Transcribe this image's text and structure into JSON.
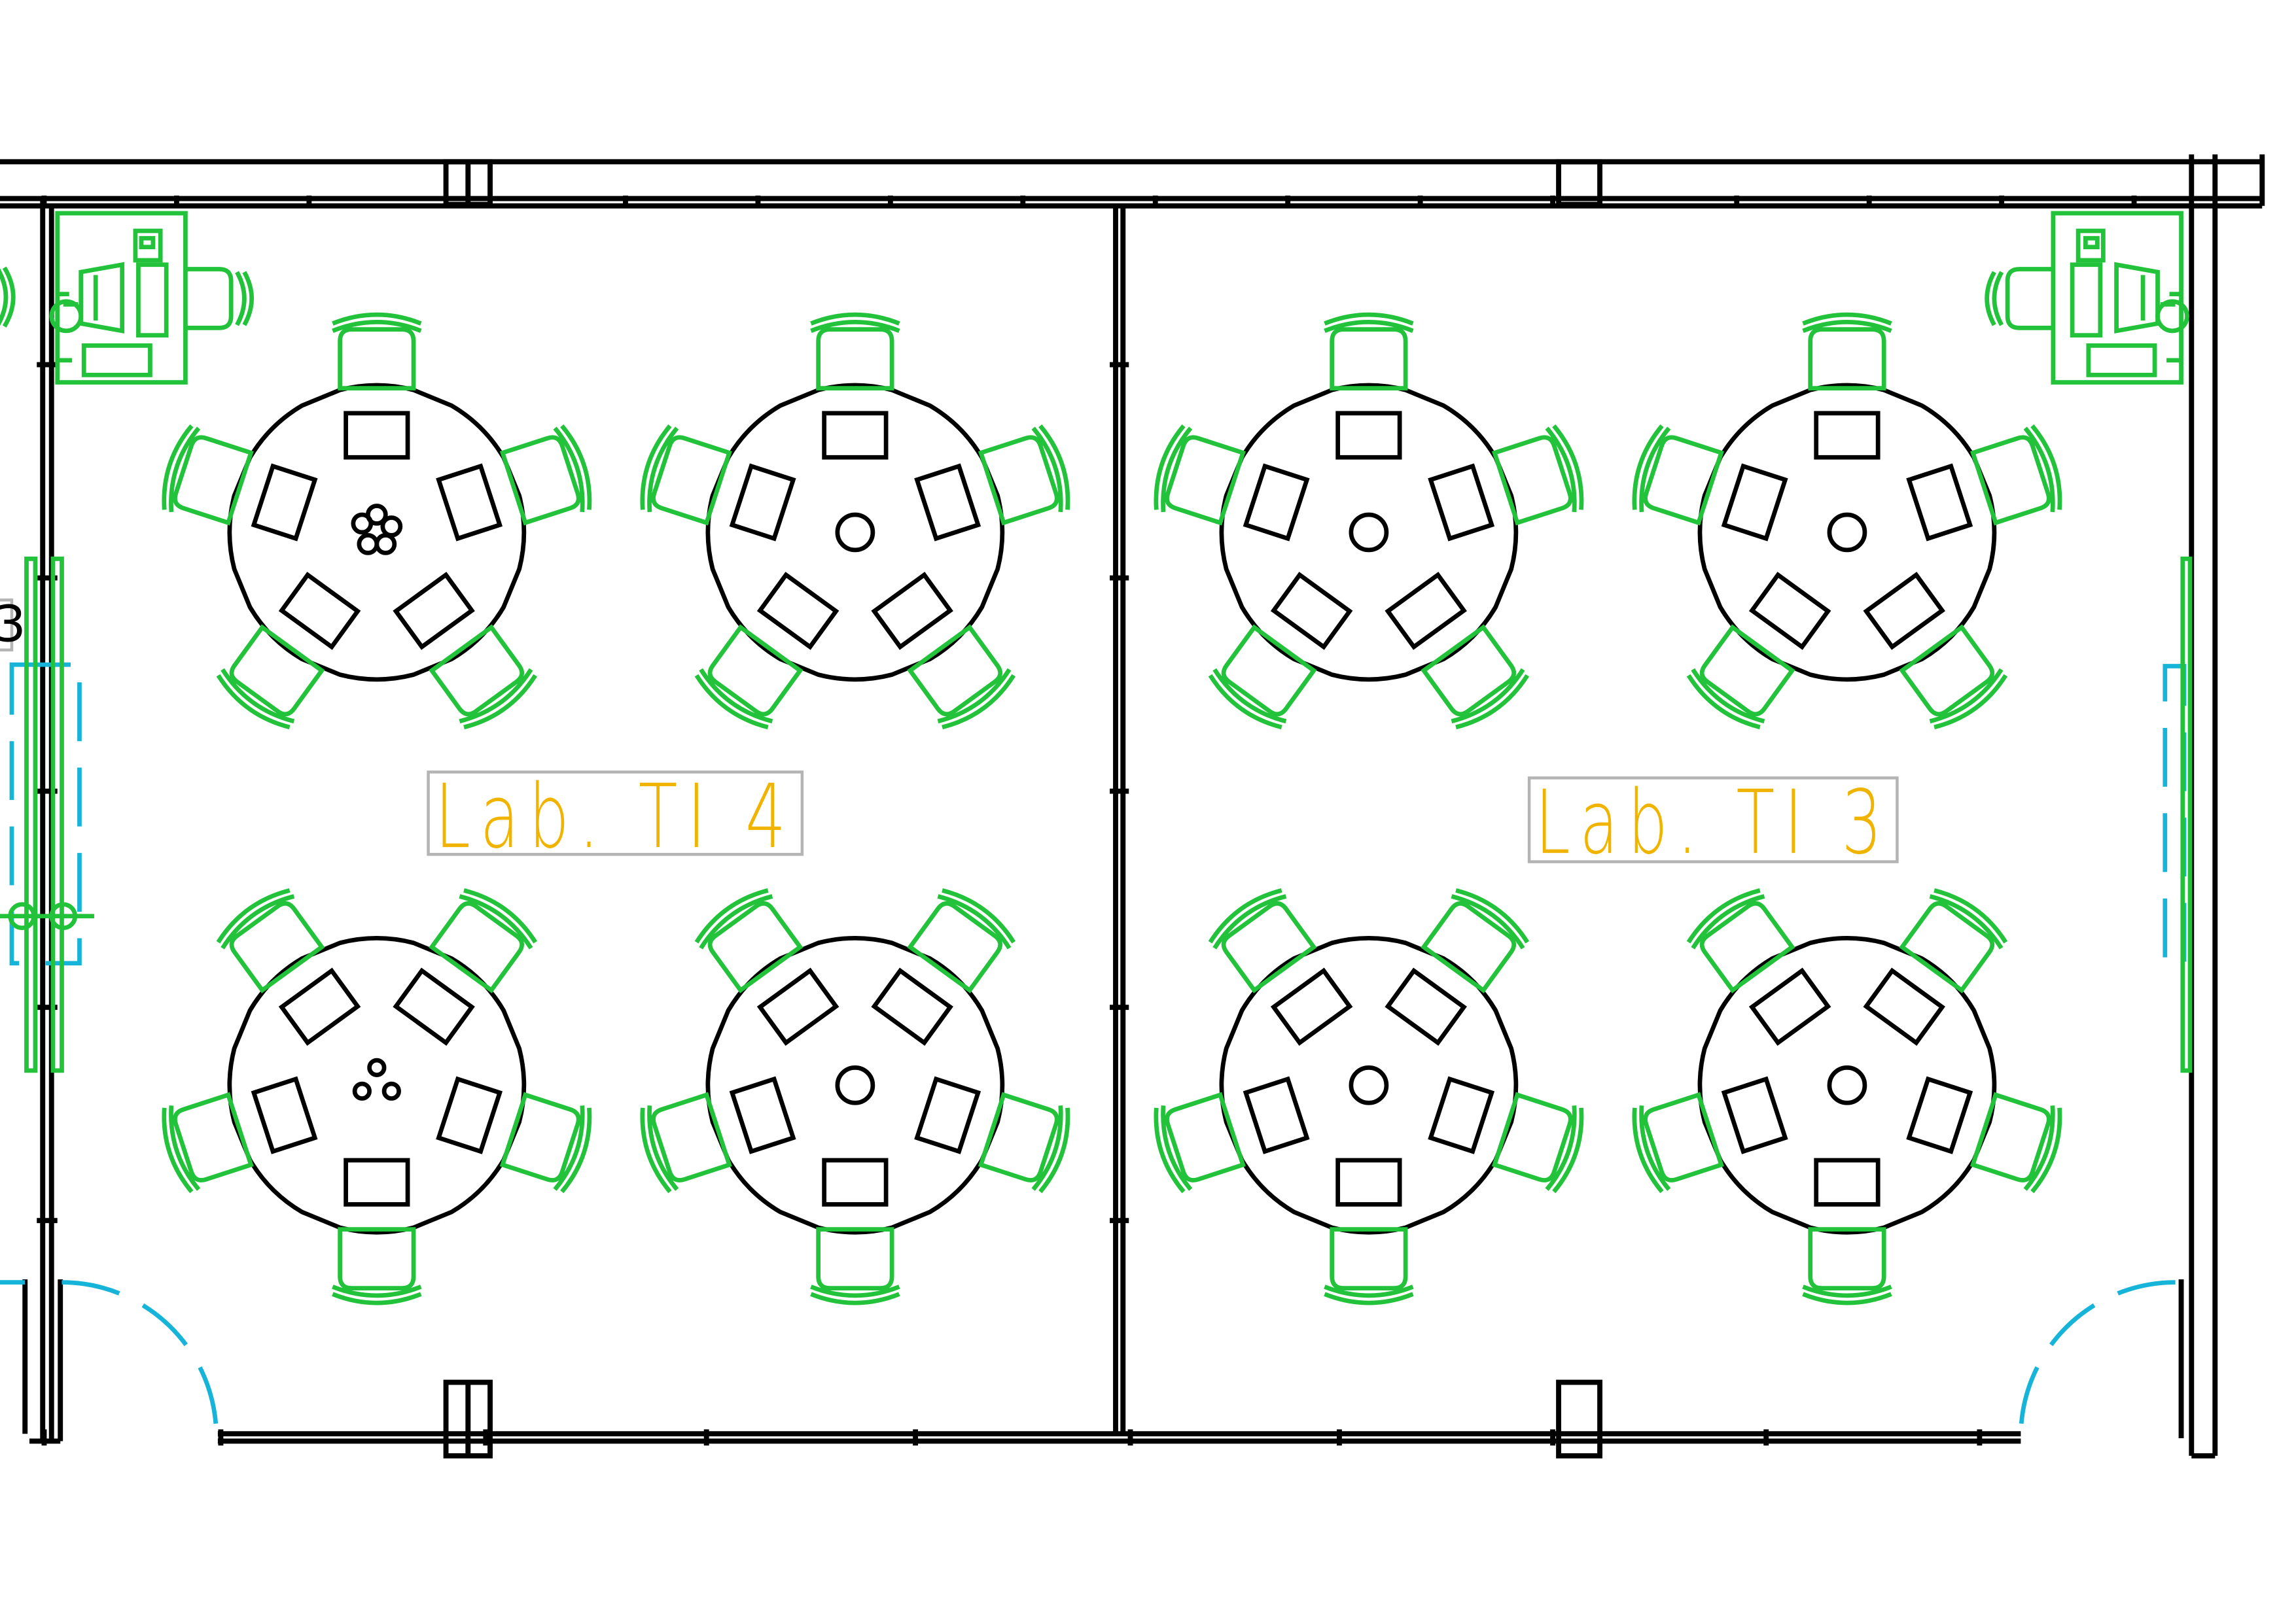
{
  "rooms": [
    {
      "label": "Lab. TI 4"
    },
    {
      "label": "Lab. TI 3"
    }
  ],
  "edge_label": "3",
  "colors": {
    "walls": "#000000",
    "furniture": "#22c23a",
    "doors_windows": "#16b4d8",
    "room_label": "#f0b400"
  }
}
